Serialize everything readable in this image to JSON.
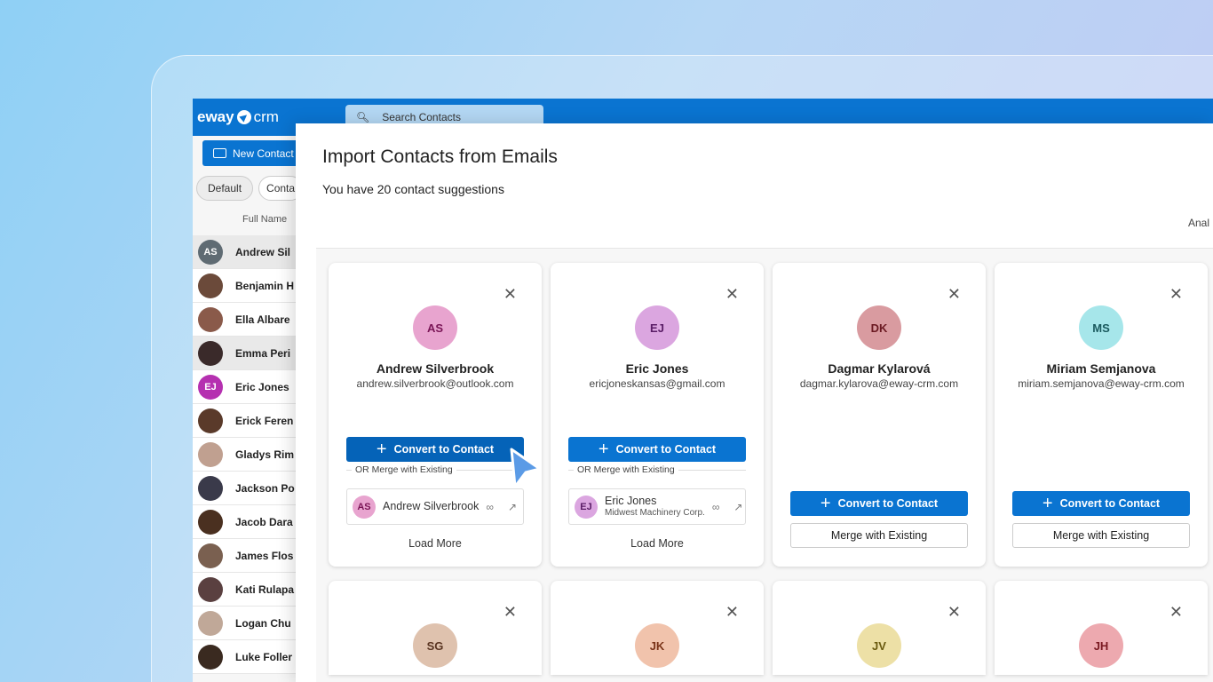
{
  "app": {
    "logo_a": "eway",
    "logo_b": "crm",
    "search_placeholder": "Search Contacts",
    "new_contact": "New Contact",
    "filters": [
      "Default",
      "Conta"
    ],
    "column": "Full Name",
    "contacts": [
      {
        "name": "Andrew Sil",
        "initials": "AS",
        "color": "#5f6b73"
      },
      {
        "name": "Benjamin H",
        "color": "#6b4a3a"
      },
      {
        "name": "Ella Albare",
        "color": "#8a5a4a"
      },
      {
        "name": "Emma Peri",
        "color": "#3a2a2a"
      },
      {
        "name": "Eric Jones",
        "initials": "EJ",
        "color": "#b530b0"
      },
      {
        "name": "Erick Feren",
        "color": "#5a3a2a"
      },
      {
        "name": "Gladys Rim",
        "color": "#c0a090"
      },
      {
        "name": "Jackson Po",
        "color": "#3a3a4a"
      },
      {
        "name": "Jacob Dara",
        "color": "#4a3020"
      },
      {
        "name": "James Flos",
        "color": "#7a6050"
      },
      {
        "name": "Kati Rulapa",
        "color": "#5a4040"
      },
      {
        "name": "Logan Chu",
        "color": "#c0a898"
      },
      {
        "name": "Luke Foller",
        "color": "#3a2a20"
      }
    ]
  },
  "dialog": {
    "title": "Import Contacts from Emails",
    "subtitle": "You have 20 contact suggestions",
    "right_label": "Anal",
    "convert_label": "Convert to Contact",
    "or_merge": "OR Merge with Existing",
    "merge_label": "Merge with Existing",
    "load_more": "Load More",
    "close": "✕",
    "cards": [
      {
        "initials": "AS",
        "name": "Andrew Silverbrook",
        "email": "andrew.silverbrook@outlook.com",
        "bg": "#e8a4cf",
        "fg": "#7a1556",
        "existing": {
          "initials": "AS",
          "name": "Andrew Silverbrook",
          "company": ""
        }
      },
      {
        "initials": "EJ",
        "name": "Eric Jones",
        "email": "ericjoneskansas@gmail.com",
        "bg": "#dba6e0",
        "fg": "#5a1d66",
        "existing": {
          "initials": "EJ",
          "name": "Eric Jones",
          "company": "Midwest Machinery Corp."
        }
      },
      {
        "initials": "DK",
        "name": "Dagmar Kylarová",
        "email": "dagmar.kylarova@eway-crm.com",
        "bg": "#d99ba0",
        "fg": "#6b1a22"
      },
      {
        "initials": "MS",
        "name": "Miriam Semjanova",
        "email": "miriam.semjanova@eway-crm.com",
        "bg": "#a6e6ea",
        "fg": "#1a5a5e"
      },
      {
        "initials": "SG",
        "bg": "#dfc2ae",
        "fg": "#5a3522"
      },
      {
        "initials": "JK",
        "bg": "#f1c3ac",
        "fg": "#7a3318"
      },
      {
        "initials": "JV",
        "bg": "#ede0a6",
        "fg": "#6a5a10"
      },
      {
        "initials": "JH",
        "bg": "#eda9af",
        "fg": "#7a1a22"
      }
    ]
  }
}
